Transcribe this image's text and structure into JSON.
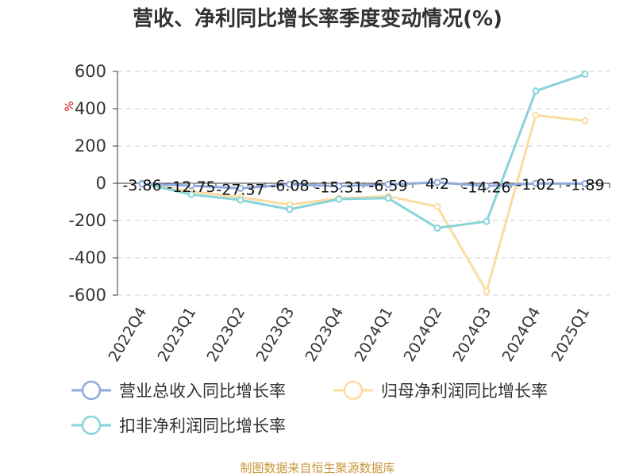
{
  "chart_data": {
    "type": "line",
    "title": "营收、净利同比增长率季度变动情况(%)",
    "ylabel": "%",
    "ylim": [
      -600,
      600
    ],
    "yticks": [
      600,
      400,
      200,
      0,
      -200,
      -400,
      -600
    ],
    "grid": true,
    "legend_position": "bottom",
    "categories": [
      "2022Q4",
      "2023Q1",
      "2023Q2",
      "2023Q3",
      "2023Q4",
      "2024Q1",
      "2024Q2",
      "2024Q3",
      "2024Q4",
      "2025Q1"
    ],
    "series": [
      {
        "name": "营业总收入同比增长率",
        "color": "#8faadc",
        "values": [
          -3.86,
          -12.75,
          -27.37,
          -6.08,
          -15.31,
          -6.59,
          4.2,
          -14.26,
          -1.02,
          -1.89
        ],
        "data_labels": [
          "-3.86",
          "-12.75",
          "-27.37",
          "-6.08",
          "-15.31",
          "-6.59",
          "4.2",
          "-14.26",
          "-1.02",
          "-1.89"
        ]
      },
      {
        "name": "归母净利润同比增长率",
        "color": "#fbdca0",
        "values": [
          0,
          -45,
          -75,
          -115,
          -80,
          -70,
          -125,
          -580,
          365,
          335
        ]
      },
      {
        "name": "扣非净利润同比增长率",
        "color": "#88d4d8",
        "values": [
          0,
          -60,
          -90,
          -140,
          -85,
          -80,
          -240,
          -205,
          495,
          585
        ]
      }
    ]
  },
  "footer": {
    "source": "制图数据来自恒生聚源数据库"
  }
}
